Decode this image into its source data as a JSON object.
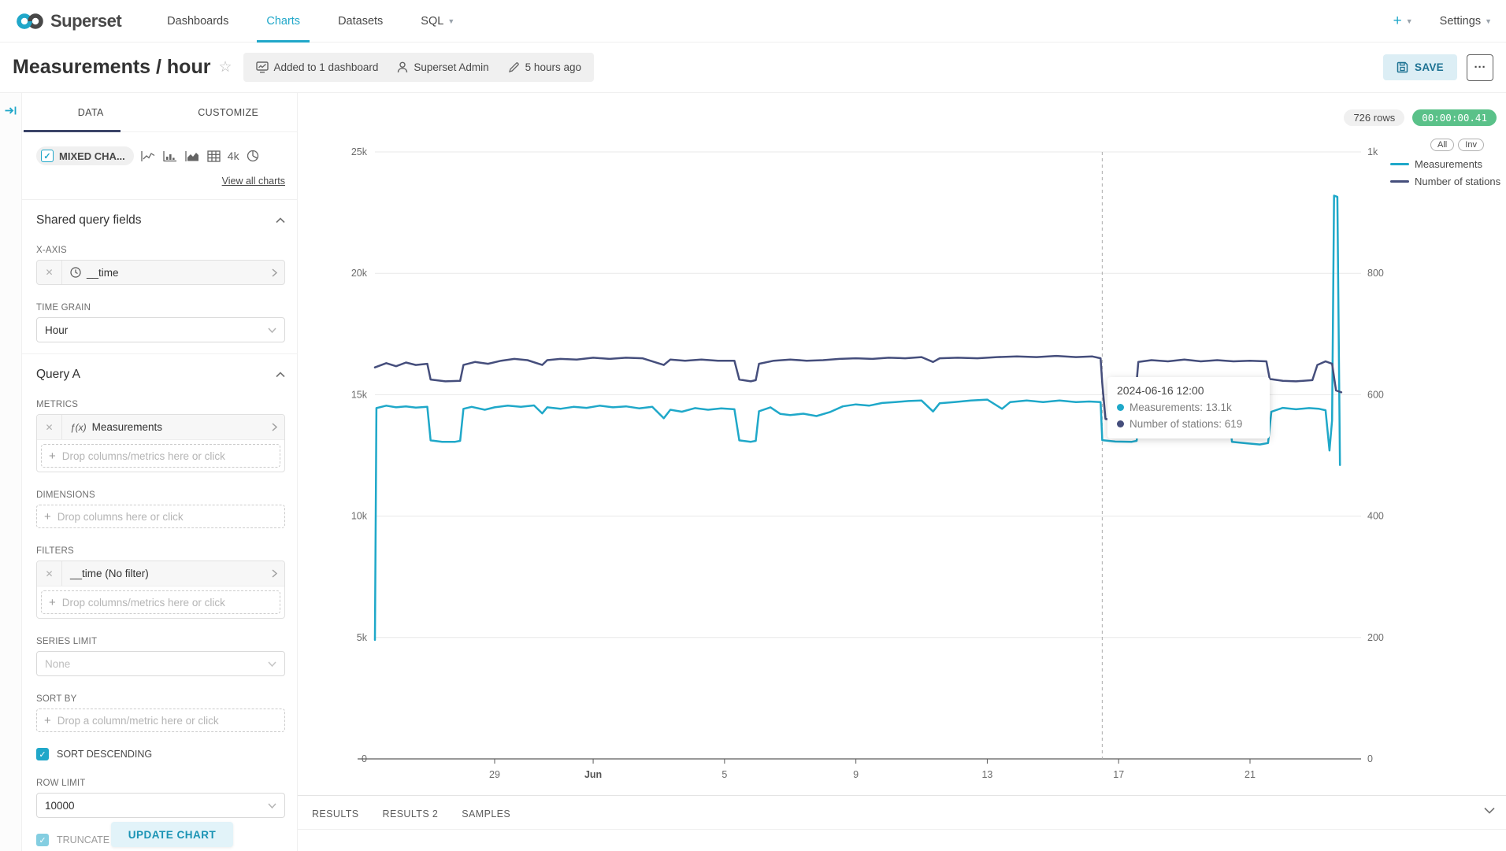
{
  "navbar": {
    "brand": "Superset",
    "items": [
      {
        "label": "Dashboards"
      },
      {
        "label": "Charts"
      },
      {
        "label": "Datasets"
      },
      {
        "label": "SQL"
      }
    ],
    "plus": "+",
    "settings": "Settings"
  },
  "header": {
    "title": "Measurements / hour",
    "dashboards": "Added to 1 dashboard",
    "owner": "Superset Admin",
    "modified": "5 hours ago",
    "save": "SAVE",
    "more": "···"
  },
  "panel": {
    "tabs": [
      {
        "label": "DATA"
      },
      {
        "label": "CUSTOMIZE"
      }
    ],
    "viz": {
      "name": "MIXED CHA...",
      "alt_4k": "4k",
      "view_all": "View all charts"
    },
    "shared": {
      "title": "Shared query fields",
      "xaxis_label": "X-AXIS",
      "xaxis_value": "__time",
      "time_grain_label": "TIME GRAIN",
      "time_grain_value": "Hour"
    },
    "query": {
      "title": "Query A",
      "metrics_label": "METRICS",
      "metric_prefix": "ƒ(x)",
      "metric": "Measurements",
      "drop_metrics": "Drop columns/metrics here or click",
      "dimensions_label": "DIMENSIONS",
      "drop_columns": "Drop columns here or click",
      "filters_label": "FILTERS",
      "filter": "__time (No filter)",
      "series_limit_label": "SERIES LIMIT",
      "series_limit_placeholder": "None",
      "sort_by_label": "SORT BY",
      "drop_sort": "Drop a column/metric here or click",
      "sort_descending": "SORT DESCENDING",
      "row_limit_label": "ROW LIMIT",
      "row_limit": "10000",
      "truncate": "TRUNCATE METRIC"
    },
    "update_button": "UPDATE CHART"
  },
  "chart": {
    "rows_badge": "726 rows",
    "timer": "00:00:00.41",
    "legend_buttons": [
      {
        "label": "All"
      },
      {
        "label": "Inv"
      }
    ],
    "legend": [
      {
        "label": "Measurements",
        "color": "#1FA8C9"
      },
      {
        "label": "Number of stations",
        "color": "#454E7C"
      }
    ],
    "tooltip": {
      "title": "2024-06-16 12:00",
      "rows": [
        {
          "label": "Measurements: 13.1k",
          "color": "#1FA8C9"
        },
        {
          "label": "Number of stations: 619",
          "color": "#454E7C"
        }
      ]
    }
  },
  "south": {
    "tabs": [
      {
        "label": "RESULTS"
      },
      {
        "label": "RESULTS 2"
      },
      {
        "label": "SAMPLES"
      }
    ]
  },
  "colors": {
    "primary": "#20A7C9",
    "series1": "#1FA8C9",
    "series2": "#454E7C",
    "timer_green": "#5AC189"
  },
  "chart_data": {
    "type": "line",
    "title": "Measurements / hour",
    "x_axis": "__time",
    "time_grain": "hour",
    "x_unit": "days since 2024-05-25 00:00",
    "x_domain": [
      0.355,
      29.95
    ],
    "x_ticks": [
      {
        "label": "29",
        "day": 4
      },
      {
        "label": "Jun",
        "day": 7,
        "bold": true
      },
      {
        "label": "5",
        "day": 11
      },
      {
        "label": "9",
        "day": 15
      },
      {
        "label": "13",
        "day": 19
      },
      {
        "label": "17",
        "day": 23
      },
      {
        "label": "21",
        "day": 27
      }
    ],
    "y_left": {
      "ticks": [
        "0",
        "5k",
        "10k",
        "15k",
        "20k",
        "25k"
      ],
      "range": [
        0,
        25000
      ]
    },
    "y_right": {
      "ticks": [
        "0",
        "200",
        "400",
        "600",
        "800",
        "1k"
      ],
      "range": [
        0,
        1000
      ]
    },
    "grid": true,
    "legend_position": "top-right",
    "crosshair_day": 22.5,
    "crosshair_label": "2024-06-16 12:00",
    "series": [
      {
        "name": "Measurements",
        "axis": "left",
        "color": "#1FA8C9",
        "points": [
          [
            0.355,
            4900
          ],
          [
            0.4,
            14450
          ],
          [
            0.7,
            14550
          ],
          [
            1.0,
            14480
          ],
          [
            1.3,
            14520
          ],
          [
            1.6,
            14470
          ],
          [
            1.95,
            14500
          ],
          [
            2.05,
            13120
          ],
          [
            2.4,
            13060
          ],
          [
            2.8,
            13060
          ],
          [
            2.95,
            13100
          ],
          [
            3.05,
            14420
          ],
          [
            3.3,
            14500
          ],
          [
            3.7,
            14380
          ],
          [
            4.0,
            14480
          ],
          [
            4.4,
            14550
          ],
          [
            4.8,
            14500
          ],
          [
            5.2,
            14560
          ],
          [
            5.45,
            14230
          ],
          [
            5.6,
            14480
          ],
          [
            6.0,
            14420
          ],
          [
            6.4,
            14500
          ],
          [
            6.8,
            14460
          ],
          [
            7.2,
            14550
          ],
          [
            7.6,
            14480
          ],
          [
            8.0,
            14520
          ],
          [
            8.4,
            14440
          ],
          [
            8.8,
            14500
          ],
          [
            9.15,
            14030
          ],
          [
            9.35,
            14380
          ],
          [
            9.7,
            14300
          ],
          [
            10.1,
            14450
          ],
          [
            10.5,
            14380
          ],
          [
            10.9,
            14440
          ],
          [
            11.3,
            14400
          ],
          [
            11.45,
            13120
          ],
          [
            11.8,
            13060
          ],
          [
            11.95,
            13100
          ],
          [
            12.05,
            14320
          ],
          [
            12.4,
            14480
          ],
          [
            12.7,
            14210
          ],
          [
            13.0,
            14160
          ],
          [
            13.4,
            14220
          ],
          [
            13.8,
            14120
          ],
          [
            14.2,
            14280
          ],
          [
            14.6,
            14520
          ],
          [
            15.0,
            14600
          ],
          [
            15.4,
            14550
          ],
          [
            15.8,
            14660
          ],
          [
            16.2,
            14700
          ],
          [
            16.6,
            14740
          ],
          [
            17.0,
            14760
          ],
          [
            17.35,
            14310
          ],
          [
            17.55,
            14650
          ],
          [
            18.0,
            14700
          ],
          [
            18.5,
            14760
          ],
          [
            19.0,
            14800
          ],
          [
            19.45,
            14420
          ],
          [
            19.7,
            14700
          ],
          [
            20.2,
            14760
          ],
          [
            20.7,
            14700
          ],
          [
            21.2,
            14760
          ],
          [
            21.7,
            14700
          ],
          [
            22.1,
            14720
          ],
          [
            22.45,
            14700
          ],
          [
            22.5,
            13130
          ],
          [
            22.9,
            13070
          ],
          [
            23.4,
            13060
          ],
          [
            23.55,
            13100
          ],
          [
            23.65,
            14430
          ],
          [
            24.0,
            14500
          ],
          [
            24.4,
            14450
          ],
          [
            24.8,
            14510
          ],
          [
            25.2,
            14460
          ],
          [
            25.6,
            14500
          ],
          [
            26.0,
            14450
          ],
          [
            26.35,
            14420
          ],
          [
            26.45,
            13060
          ],
          [
            26.9,
            13000
          ],
          [
            27.3,
            12950
          ],
          [
            27.55,
            13010
          ],
          [
            27.65,
            14300
          ],
          [
            28.0,
            14460
          ],
          [
            28.4,
            14400
          ],
          [
            28.8,
            14450
          ],
          [
            29.1,
            14420
          ],
          [
            29.3,
            14360
          ],
          [
            29.42,
            12700
          ],
          [
            29.5,
            13950
          ],
          [
            29.56,
            23200
          ],
          [
            29.66,
            23150
          ],
          [
            29.74,
            12100
          ]
        ]
      },
      {
        "name": "Number of stations",
        "axis": "right",
        "color": "#454E7C",
        "points": [
          [
            0.355,
            645
          ],
          [
            0.7,
            652
          ],
          [
            1.0,
            647
          ],
          [
            1.3,
            653
          ],
          [
            1.6,
            649
          ],
          [
            1.95,
            651
          ],
          [
            2.05,
            625
          ],
          [
            2.5,
            622
          ],
          [
            2.95,
            623
          ],
          [
            3.05,
            649
          ],
          [
            3.4,
            654
          ],
          [
            3.8,
            651
          ],
          [
            4.2,
            656
          ],
          [
            4.6,
            659
          ],
          [
            5.0,
            657
          ],
          [
            5.45,
            649
          ],
          [
            5.6,
            657
          ],
          [
            6.0,
            659
          ],
          [
            6.5,
            658
          ],
          [
            7.0,
            661
          ],
          [
            7.5,
            659
          ],
          [
            8.0,
            661
          ],
          [
            8.5,
            660
          ],
          [
            9.15,
            649
          ],
          [
            9.35,
            658
          ],
          [
            9.8,
            656
          ],
          [
            10.3,
            658
          ],
          [
            10.8,
            656
          ],
          [
            11.3,
            656
          ],
          [
            11.45,
            625
          ],
          [
            11.8,
            622
          ],
          [
            11.95,
            624
          ],
          [
            12.05,
            651
          ],
          [
            12.5,
            656
          ],
          [
            13.0,
            658
          ],
          [
            13.5,
            656
          ],
          [
            14.0,
            657
          ],
          [
            14.5,
            659
          ],
          [
            15.0,
            660
          ],
          [
            15.5,
            659
          ],
          [
            16.0,
            661
          ],
          [
            16.5,
            660
          ],
          [
            17.0,
            662
          ],
          [
            17.35,
            654
          ],
          [
            17.55,
            660
          ],
          [
            18.1,
            661
          ],
          [
            18.7,
            660
          ],
          [
            19.3,
            662
          ],
          [
            19.9,
            663
          ],
          [
            20.5,
            662
          ],
          [
            21.1,
            664
          ],
          [
            21.7,
            662
          ],
          [
            22.2,
            663
          ],
          [
            22.45,
            660
          ],
          [
            22.5,
            619
          ],
          [
            22.6,
            560
          ],
          [
            23.0,
            558
          ],
          [
            23.45,
            560
          ],
          [
            23.6,
            654
          ],
          [
            24.0,
            657
          ],
          [
            24.5,
            655
          ],
          [
            25.0,
            658
          ],
          [
            25.5,
            655
          ],
          [
            26.0,
            657
          ],
          [
            26.5,
            655
          ],
          [
            27.0,
            656
          ],
          [
            27.5,
            655
          ],
          [
            27.6,
            626
          ],
          [
            28.0,
            623
          ],
          [
            28.4,
            622
          ],
          [
            28.9,
            624
          ],
          [
            29.05,
            649
          ],
          [
            29.3,
            655
          ],
          [
            29.5,
            651
          ],
          [
            29.62,
            607
          ],
          [
            29.78,
            604
          ]
        ]
      }
    ]
  }
}
